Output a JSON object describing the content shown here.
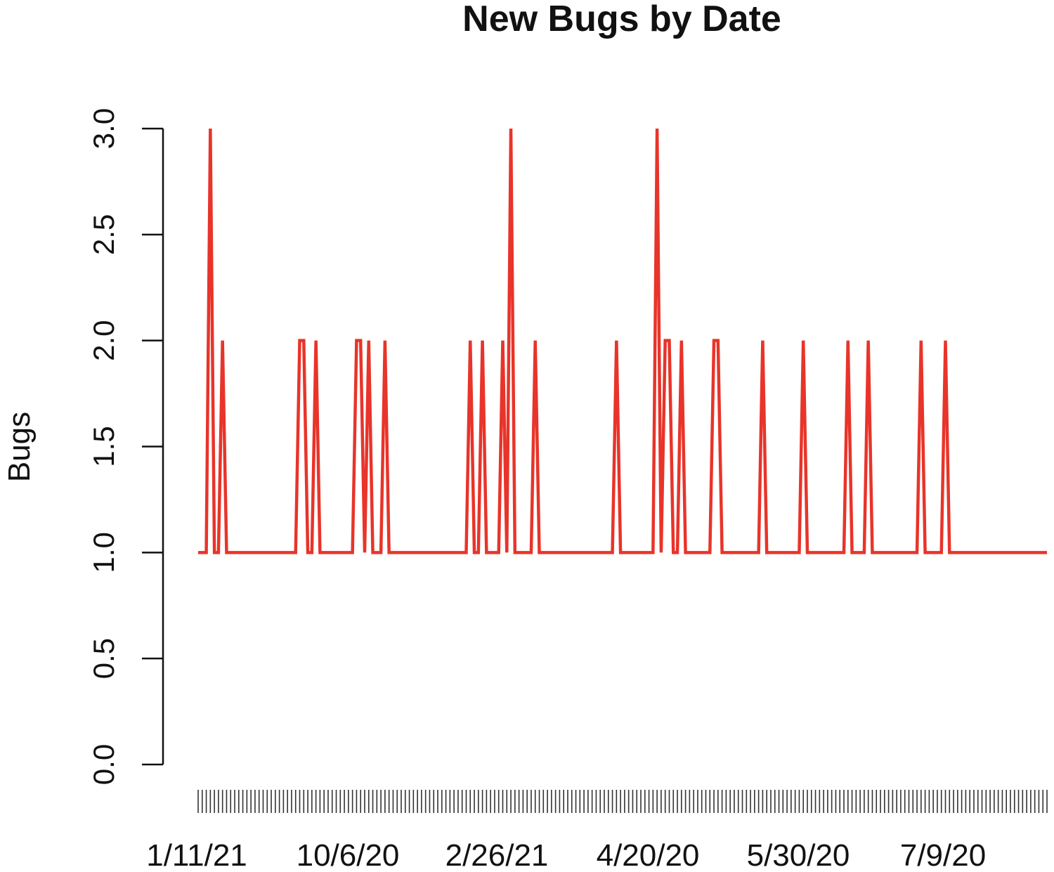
{
  "chart_data": {
    "type": "line",
    "title": "New Bugs by Date",
    "xlabel": "",
    "ylabel": "Bugs",
    "ylim": [
      0,
      3
    ],
    "yticks": [
      "0.0",
      "0.5",
      "1.0",
      "1.5",
      "2.0",
      "2.5",
      "3.0"
    ],
    "xticks": [
      "1/11/21",
      "10/6/20",
      "2/26/21",
      "4/20/20",
      "5/30/20",
      "7/9/20"
    ],
    "tick_count": 210,
    "grid": false,
    "line_color": "#e8342a",
    "series": [
      {
        "values": [
          1,
          1,
          1,
          3,
          1,
          1,
          2,
          1,
          1,
          1,
          1,
          1,
          1,
          1,
          1,
          1,
          1,
          1,
          1,
          1,
          1,
          1,
          1,
          1,
          1,
          2,
          2,
          1,
          1,
          2,
          1,
          1,
          1,
          1,
          1,
          1,
          1,
          1,
          1,
          2,
          2,
          1,
          2,
          1,
          1,
          1,
          2,
          1,
          1,
          1,
          1,
          1,
          1,
          1,
          1,
          1,
          1,
          1,
          1,
          1,
          1,
          1,
          1,
          1,
          1,
          1,
          1,
          2,
          1,
          1,
          2,
          1,
          1,
          1,
          1,
          2,
          1,
          3,
          1,
          1,
          1,
          1,
          1,
          2,
          1,
          1,
          1,
          1,
          1,
          1,
          1,
          1,
          1,
          1,
          1,
          1,
          1,
          1,
          1,
          1,
          1,
          1,
          1,
          2,
          1,
          1,
          1,
          1,
          1,
          1,
          1,
          1,
          1,
          3,
          1,
          2,
          2,
          1,
          1,
          2,
          1,
          1,
          1,
          1,
          1,
          1,
          1,
          2,
          2,
          1,
          1,
          1,
          1,
          1,
          1,
          1,
          1,
          1,
          1,
          2,
          1,
          1,
          1,
          1,
          1,
          1,
          1,
          1,
          1,
          2,
          1,
          1,
          1,
          1,
          1,
          1,
          1,
          1,
          1,
          1,
          2,
          1,
          1,
          1,
          1,
          2,
          1,
          1,
          1,
          1,
          1,
          1,
          1,
          1,
          1,
          1,
          1,
          1,
          2,
          1,
          1,
          1,
          1,
          1,
          2,
          1,
          1,
          1,
          1,
          1,
          1,
          1,
          1,
          1,
          1,
          1,
          1,
          1,
          1,
          1,
          1,
          1,
          1,
          1,
          1,
          1,
          1,
          1,
          1,
          1
        ]
      }
    ]
  }
}
